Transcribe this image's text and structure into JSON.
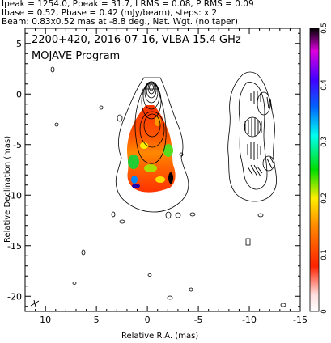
{
  "header": {
    "line1": "Ipeak = 1254.0, Ppeak = 31.7, I RMS = 0.08, P RMS = 0.09",
    "line2": "Ibase = 0.52, Pbase = 0.42 (mJy/beam), steps: x 2",
    "line3": "Beam: 0.83x0.52 mas at -8.8 deg., Nat. Wgt. (no taper)"
  },
  "plot": {
    "title": "2200+420, 2016-07-16, VLBA 15.4 GHz",
    "subtitle": "MOJAVE Program"
  },
  "chart_data": {
    "type": "heatmap",
    "title": "2200+420, 2016-07-16, VLBA 15.4 GHz",
    "subtitle": "MOJAVE Program",
    "xlabel": "Relative R.A. (mas)",
    "ylabel": "Relative Declination (mas)",
    "xlim": [
      12,
      -15
    ],
    "ylim": [
      -21.5,
      6.5
    ],
    "x_ticks": [
      10,
      5,
      0,
      -5,
      -10,
      -15
    ],
    "y_ticks": [
      5,
      0,
      -5,
      -10,
      -15,
      -20
    ],
    "colorbar": {
      "range": [
        0,
        0.5
      ],
      "ticks": [
        0,
        0.1,
        0.2,
        0.3,
        0.4,
        0.5
      ],
      "colors": [
        "#ffffff",
        "#ff2200",
        "#ff8800",
        "#ffee00",
        "#00dd00",
        "#00ffee",
        "#0066ff",
        "#4400ff",
        "#dd00dd",
        "#000000"
      ]
    },
    "panels": [
      "total intensity + fractional polarization",
      "polarized intensity + EVPA"
    ],
    "background": "white"
  }
}
